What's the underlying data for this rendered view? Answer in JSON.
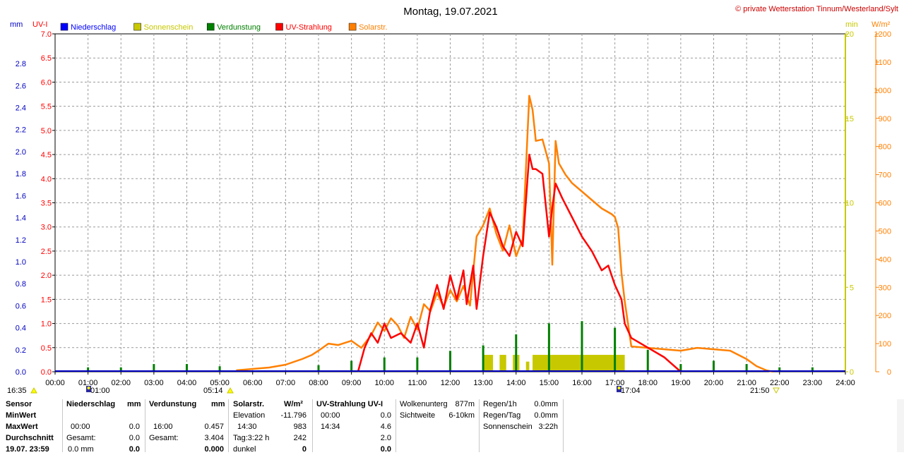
{
  "header": {
    "title": "Montag, 19.07.2021",
    "copyright": "© private Wetterstation Tinnum/Westerland/Sylt",
    "unit_mm": "mm",
    "unit_uv": "UV-I",
    "unit_min": "min",
    "unit_wm2": "W/m²"
  },
  "legend": [
    {
      "label": "Niederschlag",
      "color": "#0000ff"
    },
    {
      "label": "Sonnenschein",
      "color": "#c8c800"
    },
    {
      "label": "Verdunstung",
      "color": "#008000"
    },
    {
      "label": "UV-Strahlung",
      "color": "#ff0000"
    },
    {
      "label": "Solarstr.",
      "color": "#ff8000"
    }
  ],
  "sun": {
    "sunrise_left": "16:35",
    "moon_time": "01:00",
    "sunrise": "05:14",
    "noon": "17:04",
    "sunset": "21:50"
  },
  "chart_data": {
    "type": "line",
    "title": "Montag, 19.07.2021",
    "x_ticks": [
      "00:00",
      "01:00",
      "02:00",
      "03:00",
      "04:00",
      "05:00",
      "06:00",
      "07:00",
      "08:00",
      "09:00",
      "10:00",
      "11:00",
      "12:00",
      "13:00",
      "14:00",
      "15:00",
      "16:00",
      "17:00",
      "18:00",
      "19:00",
      "20:00",
      "21:00",
      "22:00",
      "23:00",
      "24:00"
    ],
    "axes": {
      "mm": {
        "label": "mm",
        "ticks": [
          "0.0",
          "0.2",
          "0.4",
          "0.6",
          "0.8",
          "1.0",
          "1.2",
          "1.4",
          "1.6",
          "1.8",
          "2.0",
          "2.2",
          "2.4",
          "2.6",
          "2.8"
        ],
        "ylim": [
          0,
          3.07
        ]
      },
      "uv": {
        "label": "UV-I",
        "ticks": [
          "0.0",
          "0.5",
          "1.0",
          "1.5",
          "2.0",
          "2.5",
          "3.0",
          "3.5",
          "4.0",
          "4.5",
          "5.0",
          "5.5",
          "6.0",
          "6.5",
          "7.0"
        ],
        "ylim": [
          0,
          7
        ]
      },
      "min": {
        "label": "min",
        "ticks": [
          "0",
          "5",
          "10",
          "15",
          "20"
        ],
        "ylim": [
          0,
          20
        ]
      },
      "wm2": {
        "label": "W/m²",
        "ticks": [
          "0",
          "100",
          "200",
          "300",
          "400",
          "500",
          "600",
          "700",
          "800",
          "900",
          "1000",
          "1100",
          "1200"
        ],
        "ylim": [
          0,
          1200
        ]
      }
    },
    "grid": true,
    "series": [
      {
        "name": "Solarstr.",
        "axis": "wm2",
        "color": "#ff8000",
        "x": [
          5.5,
          6.0,
          6.5,
          7.0,
          7.5,
          7.8,
          8.0,
          8.3,
          8.6,
          9.0,
          9.3,
          9.6,
          9.8,
          10.0,
          10.2,
          10.4,
          10.6,
          10.8,
          11.0,
          11.2,
          11.4,
          11.6,
          11.8,
          12.0,
          12.2,
          12.4,
          12.6,
          12.8,
          13.0,
          13.2,
          13.4,
          13.6,
          13.8,
          14.0,
          14.2,
          14.4,
          14.5,
          14.6,
          14.8,
          15.0,
          15.1,
          15.2,
          15.3,
          15.5,
          15.7,
          16.0,
          16.3,
          16.6,
          16.9,
          17.0,
          17.1,
          17.2,
          17.3,
          17.5,
          18.0,
          18.5,
          19.0,
          19.5,
          20.0,
          20.5,
          21.0,
          21.3,
          21.6,
          21.8
        ],
        "y": [
          5,
          10,
          15,
          25,
          45,
          60,
          75,
          100,
          95,
          110,
          85,
          130,
          175,
          145,
          190,
          165,
          120,
          195,
          150,
          240,
          215,
          280,
          230,
          290,
          250,
          305,
          235,
          480,
          520,
          580,
          490,
          430,
          520,
          410,
          470,
          980,
          930,
          820,
          825,
          740,
          380,
          820,
          740,
          700,
          670,
          640,
          610,
          580,
          560,
          550,
          510,
          350,
          250,
          90,
          85,
          80,
          75,
          85,
          80,
          75,
          45,
          20,
          5,
          0
        ]
      },
      {
        "name": "UV-Strahlung",
        "axis": "uv",
        "color": "#ff0000",
        "x": [
          9.2,
          9.4,
          9.6,
          9.8,
          10.0,
          10.2,
          10.5,
          10.8,
          11.0,
          11.2,
          11.4,
          11.6,
          11.8,
          12.0,
          12.2,
          12.4,
          12.5,
          12.7,
          12.8,
          13.0,
          13.2,
          13.4,
          13.6,
          13.8,
          14.0,
          14.2,
          14.4,
          14.5,
          14.6,
          14.8,
          15.0,
          15.1,
          15.2,
          15.4,
          15.7,
          16.0,
          16.3,
          16.6,
          16.8,
          17.0,
          17.2,
          17.3,
          17.5,
          18.0,
          18.5,
          19.0
        ],
        "y": [
          0.0,
          0.5,
          0.8,
          0.6,
          1.0,
          0.7,
          0.8,
          0.6,
          1.0,
          0.5,
          1.3,
          1.8,
          1.3,
          2.0,
          1.5,
          2.1,
          1.4,
          2.2,
          1.3,
          2.4,
          3.3,
          3.0,
          2.6,
          2.4,
          2.9,
          2.6,
          4.5,
          4.2,
          4.2,
          4.1,
          2.8,
          3.4,
          3.9,
          3.6,
          3.2,
          2.8,
          2.5,
          2.1,
          2.2,
          1.8,
          1.5,
          1.0,
          0.7,
          0.5,
          0.3,
          0.0
        ]
      },
      {
        "name": "Sonnenschein",
        "axis": "min",
        "color": "#c8c800",
        "bars": [
          [
            13.0,
            13.3,
            1.0
          ],
          [
            13.5,
            13.7,
            1.0
          ],
          [
            13.9,
            14.1,
            1.0
          ],
          [
            14.3,
            14.4,
            0.6
          ],
          [
            14.5,
            15.0,
            1.0
          ],
          [
            15.0,
            17.3,
            1.0
          ]
        ]
      },
      {
        "name": "Verdunstung",
        "axis": "mm",
        "color": "#008000",
        "spikes": [
          [
            1,
            0.04
          ],
          [
            2,
            0.04
          ],
          [
            3,
            0.07
          ],
          [
            4,
            0.07
          ],
          [
            5,
            0.05
          ],
          [
            8,
            0.06
          ],
          [
            9,
            0.1
          ],
          [
            10,
            0.13
          ],
          [
            11,
            0.13
          ],
          [
            12,
            0.19
          ],
          [
            13,
            0.24
          ],
          [
            14,
            0.34
          ],
          [
            15,
            0.44
          ],
          [
            16,
            0.46
          ],
          [
            17,
            0.4
          ],
          [
            18,
            0.2
          ],
          [
            19,
            0.07
          ],
          [
            20,
            0.1
          ],
          [
            21,
            0.07
          ],
          [
            22,
            0.04
          ],
          [
            23,
            0.04
          ]
        ]
      },
      {
        "name": "Niederschlag",
        "axis": "mm",
        "color": "#0000ff",
        "values": []
      }
    ]
  },
  "table": {
    "c1": {
      "r1": "Sensor",
      "r2": "MinWert",
      "r3": "MaxWert",
      "r4": "Durchschnitt",
      "r5": "19.07. 23:59"
    },
    "c2": {
      "head": "Niederschlag",
      "unit": "mm",
      "max_time": "00:00",
      "max_val": "0.0",
      "sum_label": "Gesamt:",
      "sum_val": "0.0",
      "now_val": "0.0 mm",
      "now_val2": "0.0"
    },
    "c3": {
      "head": "Verdunstung",
      "unit": "mm",
      "max_time": "16:00",
      "max_val": "0.457",
      "sum_label": "Gesamt:",
      "sum_val": "3.404",
      "now_val": "0.000"
    },
    "c4": {
      "head": "Solarstr.",
      "unit": "W/m²",
      "r1_label": "Elevation",
      "r1_val": "-11.796",
      "r2_label": "14:30",
      "r2_val": "983",
      "r3_label": "Tag:3:22 h",
      "r3_val": "242",
      "r4_label": "dunkel",
      "r4_val": "0"
    },
    "c5": {
      "head": "UV-Strahlung UV-I",
      "r1_label": "00:00",
      "r1_val": "0.0",
      "r2_label": "14:34",
      "r2_val": "4.6",
      "r3_val": "2.0",
      "r4_val": "0.0"
    },
    "c6": {
      "r1_label": "Wolkenunterg",
      "r1_val": "877m",
      "r2_label": "Sichtweite",
      "r2_val": "6-10km"
    },
    "c7": {
      "r1_label": "Regen/1h",
      "r1_val": "0.0mm",
      "r2_label": "Regen/Tag",
      "r2_val": "0.0mm",
      "r3_label": "Sonnenschein",
      "r3_val": "3:22h"
    }
  }
}
